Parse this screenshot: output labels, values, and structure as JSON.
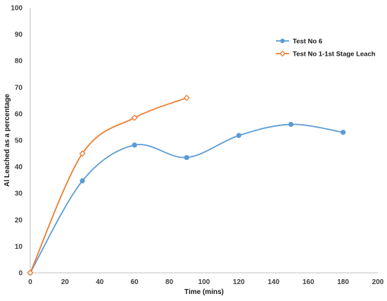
{
  "chart_data": {
    "type": "line",
    "title": "",
    "xlabel": "Time (mins)",
    "ylabel": "Al Leached as a percentage",
    "xlim": [
      0,
      200
    ],
    "ylim": [
      0,
      100
    ],
    "x_ticks": [
      0,
      20,
      40,
      60,
      80,
      100,
      120,
      140,
      160,
      180,
      200
    ],
    "y_ticks": [
      0,
      10,
      20,
      30,
      40,
      50,
      60,
      70,
      80,
      90,
      100
    ],
    "grid": false,
    "smooth": true,
    "legend": "right",
    "series": [
      {
        "name": "Test No 6",
        "color": "#5B9BD5",
        "marker": "circle",
        "x": [
          0,
          30,
          60,
          90,
          120,
          150,
          180
        ],
        "y": [
          0,
          34.7,
          48.2,
          43.5,
          51.8,
          56.0,
          53.0
        ]
      },
      {
        "name": "Test No 1-1st Stage Leach",
        "color": "#ED7D31",
        "marker": "diamond",
        "x": [
          0,
          30,
          60,
          90
        ],
        "y": [
          0,
          45.0,
          58.5,
          66.0
        ]
      }
    ]
  }
}
